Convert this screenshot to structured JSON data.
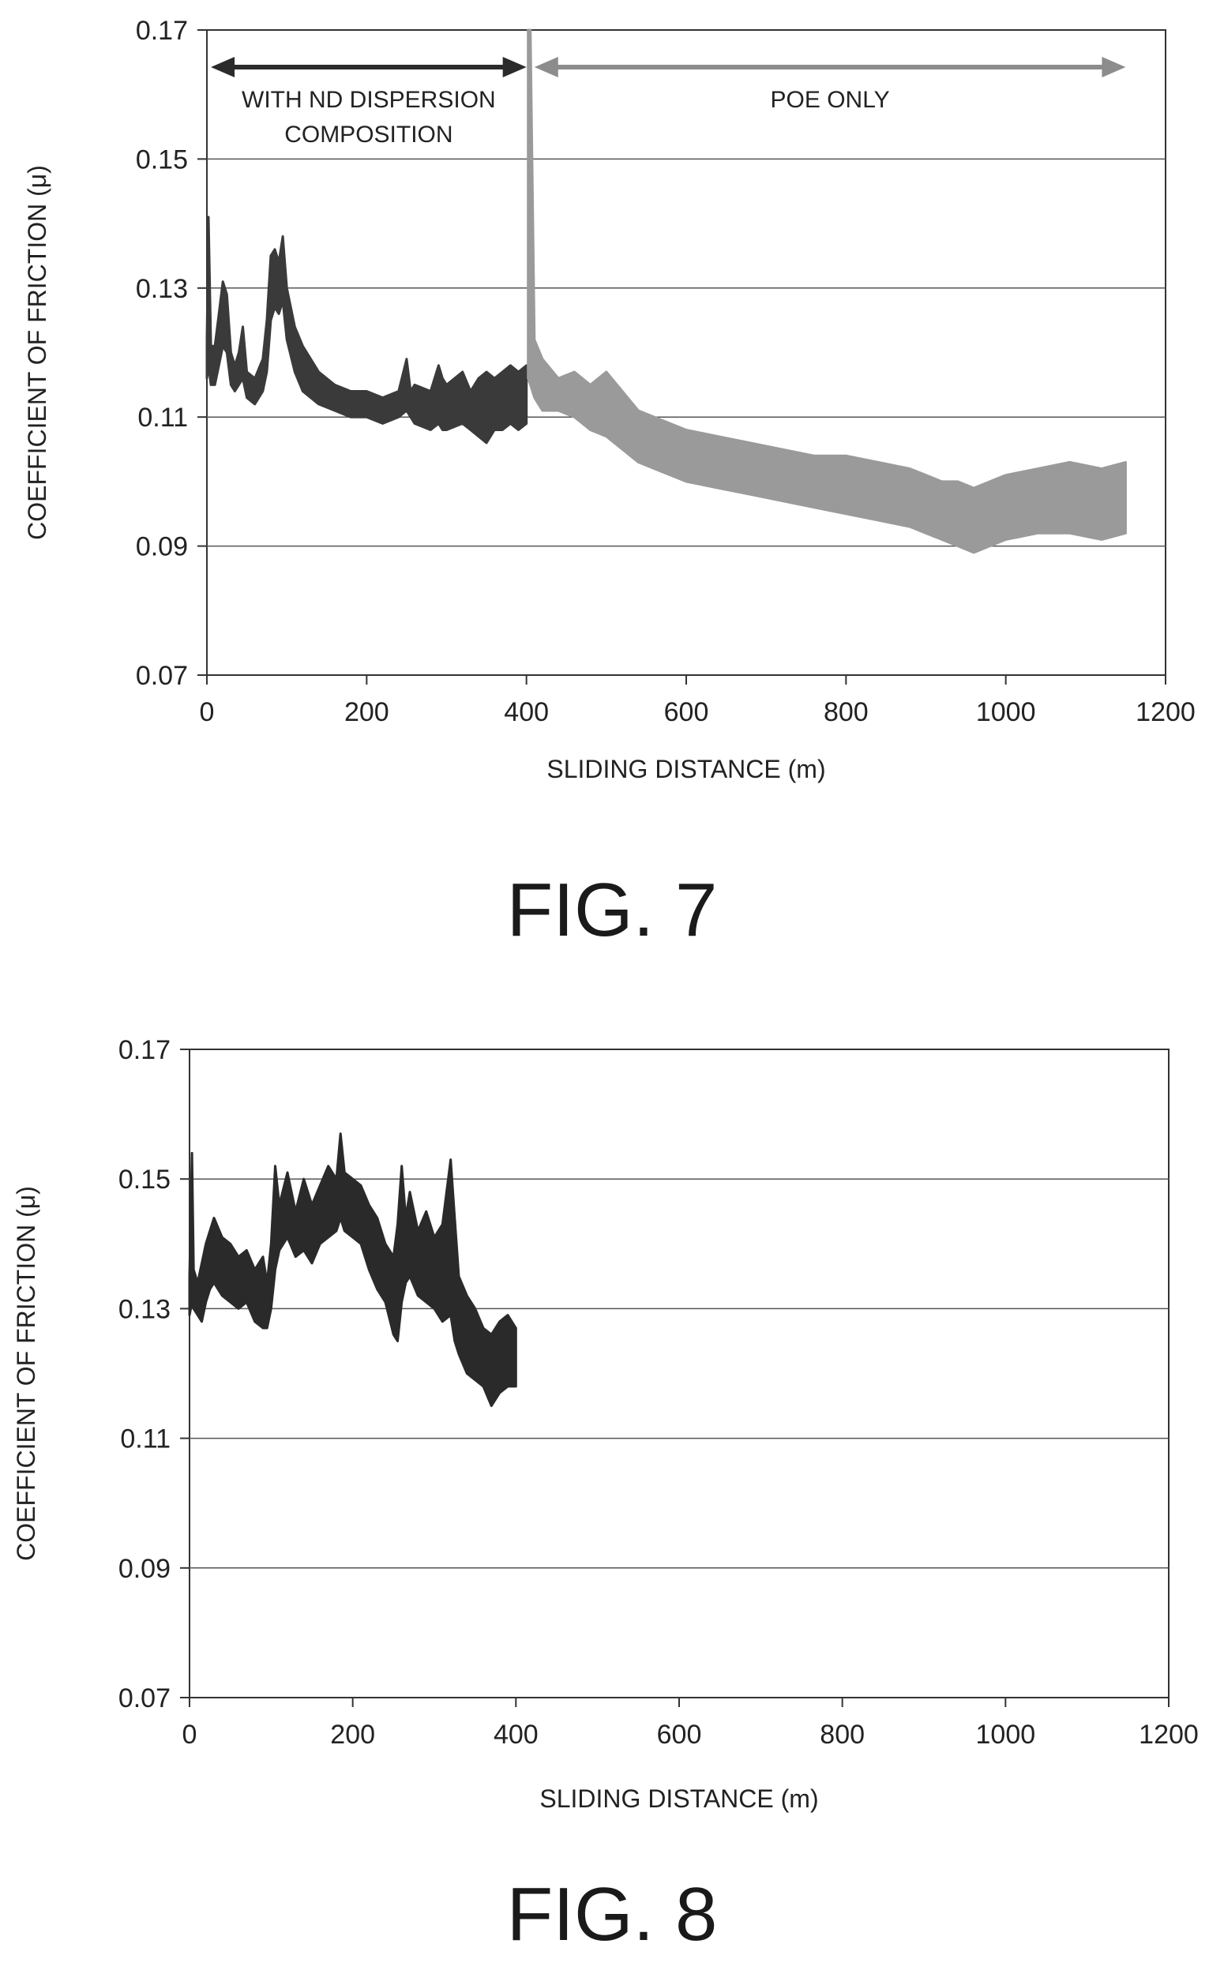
{
  "chart_data": [
    {
      "type": "area",
      "figure_label": "FIG. 7",
      "xlabel": "SLIDING DISTANCE (m)",
      "ylabel": "COEFFICIENT OF FRICTION (μ)",
      "xlim": [
        0,
        1200
      ],
      "ylim": [
        0.07,
        0.17
      ],
      "x_ticks": [
        "0",
        "200",
        "400",
        "600",
        "800",
        "1000",
        "1200"
      ],
      "y_ticks": [
        "0.07",
        "0.09",
        "0.11",
        "0.13",
        "0.15",
        "0.17"
      ],
      "grid": "horizontal",
      "annotations": [
        {
          "text_lines": [
            "WITH ND DISPERSION",
            "COMPOSITION"
          ],
          "x_range": [
            5,
            400
          ],
          "color": "#2b2b2b"
        },
        {
          "text_lines": [
            "POE ONLY"
          ],
          "x_range": [
            410,
            1150
          ],
          "color": "#8c8c8c"
        }
      ],
      "series": [
        {
          "color": "#3a3a3a",
          "x": [
            0,
            2,
            5,
            10,
            15,
            20,
            25,
            30,
            35,
            40,
            45,
            50,
            60,
            70,
            75,
            80,
            85,
            90,
            95,
            100,
            110,
            120,
            140,
            160,
            180,
            200,
            220,
            240,
            250,
            255,
            260,
            280,
            290,
            295,
            300,
            320,
            330,
            340,
            350,
            360,
            370,
            380,
            390,
            400
          ],
          "upper": [
            0.122,
            0.141,
            0.121,
            0.121,
            0.126,
            0.131,
            0.129,
            0.12,
            0.118,
            0.12,
            0.124,
            0.117,
            0.116,
            0.119,
            0.125,
            0.135,
            0.136,
            0.134,
            0.138,
            0.13,
            0.124,
            0.121,
            0.117,
            0.115,
            0.114,
            0.114,
            0.113,
            0.114,
            0.119,
            0.114,
            0.115,
            0.114,
            0.118,
            0.116,
            0.115,
            0.117,
            0.114,
            0.116,
            0.117,
            0.116,
            0.117,
            0.118,
            0.117,
            0.118
          ],
          "lower": [
            0.116,
            0.118,
            0.115,
            0.115,
            0.118,
            0.121,
            0.12,
            0.115,
            0.114,
            0.115,
            0.116,
            0.113,
            0.112,
            0.114,
            0.117,
            0.125,
            0.127,
            0.126,
            0.128,
            0.122,
            0.117,
            0.114,
            0.112,
            0.111,
            0.11,
            0.11,
            0.109,
            0.11,
            0.111,
            0.11,
            0.109,
            0.108,
            0.109,
            0.108,
            0.108,
            0.109,
            0.108,
            0.107,
            0.106,
            0.108,
            0.108,
            0.109,
            0.108,
            0.109
          ]
        },
        {
          "color": "#9a9a9a",
          "x": [
            402,
            405,
            410,
            420,
            440,
            460,
            480,
            500,
            520,
            540,
            560,
            580,
            600,
            640,
            680,
            720,
            760,
            800,
            840,
            880,
            900,
            920,
            940,
            960,
            980,
            1000,
            1040,
            1080,
            1120,
            1150
          ],
          "upper": [
            0.17,
            0.17,
            0.122,
            0.119,
            0.116,
            0.117,
            0.115,
            0.117,
            0.114,
            0.111,
            0.11,
            0.109,
            0.108,
            0.107,
            0.106,
            0.105,
            0.104,
            0.104,
            0.103,
            0.102,
            0.101,
            0.1,
            0.1,
            0.099,
            0.1,
            0.101,
            0.102,
            0.103,
            0.102,
            0.103
          ],
          "lower": [
            0.116,
            0.115,
            0.113,
            0.111,
            0.111,
            0.11,
            0.108,
            0.107,
            0.105,
            0.103,
            0.102,
            0.101,
            0.1,
            0.099,
            0.098,
            0.097,
            0.096,
            0.095,
            0.094,
            0.093,
            0.092,
            0.091,
            0.09,
            0.089,
            0.09,
            0.091,
            0.092,
            0.092,
            0.091,
            0.092
          ]
        }
      ]
    },
    {
      "type": "area",
      "figure_label": "FIG. 8",
      "xlabel": "SLIDING DISTANCE (m)",
      "ylabel": "COEFFICIENT OF FRICTION (μ)",
      "xlim": [
        0,
        1200
      ],
      "ylim": [
        0.07,
        0.17
      ],
      "x_ticks": [
        "0",
        "200",
        "400",
        "600",
        "800",
        "1000",
        "1200"
      ],
      "y_ticks": [
        "0.07",
        "0.09",
        "0.11",
        "0.13",
        "0.15",
        "0.17"
      ],
      "grid": "horizontal",
      "series": [
        {
          "color": "#2a2a2a",
          "x": [
            0,
            3,
            5,
            10,
            15,
            20,
            25,
            30,
            40,
            50,
            60,
            70,
            80,
            90,
            95,
            100,
            105,
            110,
            120,
            130,
            140,
            150,
            160,
            170,
            180,
            185,
            190,
            200,
            210,
            220,
            230,
            240,
            250,
            255,
            260,
            265,
            270,
            280,
            290,
            300,
            310,
            320,
            325,
            330,
            340,
            350,
            360,
            370,
            380,
            390,
            400
          ],
          "upper": [
            0.135,
            0.154,
            0.136,
            0.134,
            0.137,
            0.14,
            0.142,
            0.144,
            0.141,
            0.14,
            0.138,
            0.139,
            0.136,
            0.138,
            0.134,
            0.14,
            0.152,
            0.146,
            0.151,
            0.145,
            0.15,
            0.146,
            0.149,
            0.152,
            0.15,
            0.157,
            0.151,
            0.15,
            0.149,
            0.146,
            0.144,
            0.14,
            0.138,
            0.143,
            0.152,
            0.144,
            0.148,
            0.142,
            0.145,
            0.141,
            0.143,
            0.153,
            0.144,
            0.135,
            0.132,
            0.13,
            0.127,
            0.126,
            0.128,
            0.129,
            0.127
          ],
          "lower": [
            0.129,
            0.131,
            0.13,
            0.129,
            0.128,
            0.131,
            0.133,
            0.134,
            0.132,
            0.131,
            0.13,
            0.131,
            0.128,
            0.127,
            0.127,
            0.13,
            0.136,
            0.139,
            0.141,
            0.138,
            0.139,
            0.137,
            0.14,
            0.141,
            0.142,
            0.144,
            0.142,
            0.141,
            0.14,
            0.136,
            0.133,
            0.131,
            0.126,
            0.125,
            0.131,
            0.134,
            0.135,
            0.132,
            0.131,
            0.13,
            0.128,
            0.129,
            0.125,
            0.123,
            0.12,
            0.119,
            0.118,
            0.115,
            0.117,
            0.118,
            0.118
          ]
        }
      ]
    }
  ]
}
